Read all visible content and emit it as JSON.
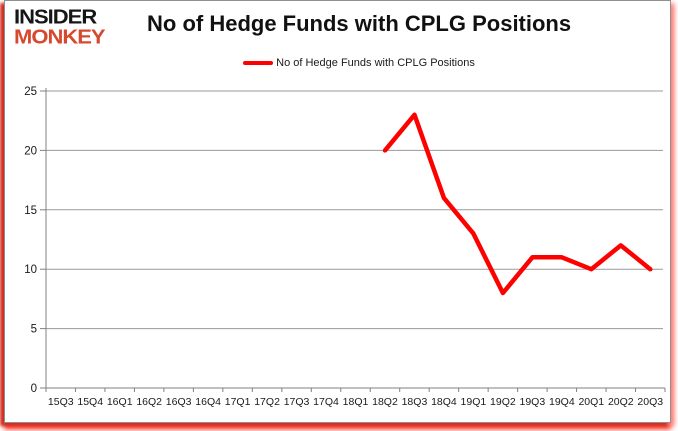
{
  "logo": {
    "line1": "INSIDER",
    "line2": "MONKEY"
  },
  "header": {
    "title": "No of Hedge Funds with CPLG Positions"
  },
  "legend": {
    "label": "No of Hedge Funds with CPLG Positions"
  },
  "colors": {
    "line": "#ff0000",
    "grid": "#9a9a9a",
    "axis": "#808080",
    "tick_text": "#1a1a1a",
    "logo_black": "#161616",
    "logo_red": "#d6492f",
    "frame_shadow_red": "#ee1405"
  },
  "chart_data": {
    "type": "line",
    "title": "No of Hedge Funds with CPLG Positions",
    "xlabel": "",
    "ylabel": "",
    "categories": [
      "15Q3",
      "15Q4",
      "16Q1",
      "16Q2",
      "16Q3",
      "16Q4",
      "17Q1",
      "17Q2",
      "17Q3",
      "17Q4",
      "18Q1",
      "18Q2",
      "18Q3",
      "18Q4",
      "19Q1",
      "19Q2",
      "19Q3",
      "19Q4",
      "20Q1",
      "20Q2",
      "20Q3"
    ],
    "series": [
      {
        "name": "No of Hedge Funds with CPLG Positions",
        "color": "#ff0000",
        "values": [
          null,
          null,
          null,
          null,
          null,
          null,
          null,
          null,
          null,
          null,
          null,
          20,
          23,
          16,
          13,
          8,
          11,
          11,
          10,
          12,
          10
        ]
      }
    ],
    "ylim": [
      0,
      25
    ],
    "ytick_step": 5,
    "grid": true,
    "legend_position": "top"
  }
}
